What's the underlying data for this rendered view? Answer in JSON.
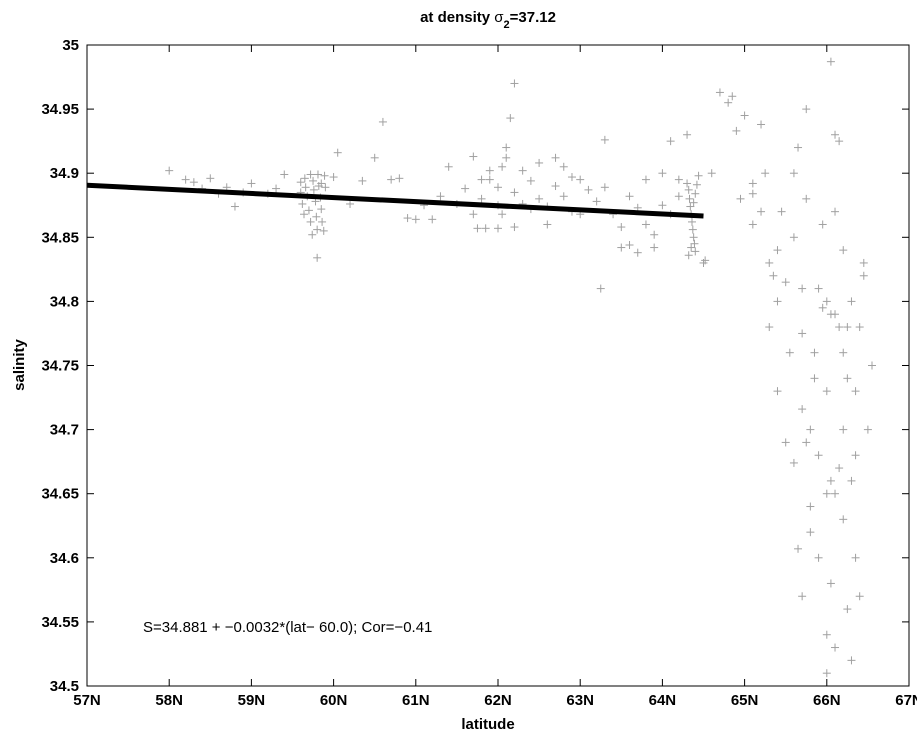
{
  "chart_data": {
    "type": "scatter",
    "title": {
      "prefix": "at density ",
      "symbol": "σ",
      "subscript": "2",
      "suffix": "=37.12"
    },
    "xlabel": "latitude",
    "ylabel": "salinity",
    "xlim": [
      57,
      67
    ],
    "ylim": [
      34.5,
      35
    ],
    "x_ticks": [
      57,
      58,
      59,
      60,
      61,
      62,
      63,
      64,
      65,
      66,
      67
    ],
    "x_tick_labels": [
      "57N",
      "58N",
      "59N",
      "60N",
      "61N",
      "62N",
      "63N",
      "64N",
      "65N",
      "66N",
      "67N"
    ],
    "y_ticks": [
      34.5,
      34.55,
      34.6,
      34.65,
      34.7,
      34.75,
      34.8,
      34.85,
      34.9,
      34.95,
      35
    ],
    "y_tick_labels": [
      "34.5",
      "34.55",
      "34.6",
      "34.65",
      "34.7",
      "34.75",
      "34.8",
      "34.85",
      "34.9",
      "34.95",
      "35"
    ],
    "grid": false,
    "marker": "+",
    "marker_color": "#a0a0a0",
    "fit_line": {
      "x": [
        57,
        64.5
      ],
      "y": [
        34.8906,
        34.8666
      ],
      "color": "#000000"
    },
    "annotation": "S=34.881 + −0.0032*(lat− 60.0); Cor=−0.41",
    "series": [
      {
        "points": [
          [
            58.0,
            34.902
          ],
          [
            58.2,
            34.895
          ],
          [
            58.3,
            34.893
          ],
          [
            58.4,
            34.888
          ],
          [
            58.5,
            34.896
          ],
          [
            58.6,
            34.884
          ],
          [
            58.7,
            34.889
          ],
          [
            58.8,
            34.874
          ],
          [
            58.9,
            34.885
          ],
          [
            59.0,
            34.892
          ],
          [
            59.2,
            34.884
          ],
          [
            59.3,
            34.888
          ],
          [
            59.4,
            34.899
          ],
          [
            59.6,
            34.893
          ],
          [
            59.6,
            34.885
          ],
          [
            59.62,
            34.876
          ],
          [
            59.64,
            34.868
          ],
          [
            59.65,
            34.896
          ],
          [
            59.66,
            34.889
          ],
          [
            59.68,
            34.882
          ],
          [
            59.7,
            34.871
          ],
          [
            59.72,
            34.862
          ],
          [
            59.74,
            34.852
          ],
          [
            59.75,
            34.894
          ],
          [
            59.76,
            34.887
          ],
          [
            59.78,
            34.878
          ],
          [
            59.79,
            34.866
          ],
          [
            59.8,
            34.856
          ],
          [
            59.8,
            34.834
          ],
          [
            59.81,
            34.899
          ],
          [
            59.82,
            34.89
          ],
          [
            59.84,
            34.881
          ],
          [
            59.85,
            34.872
          ],
          [
            59.86,
            34.862
          ],
          [
            59.88,
            34.855
          ],
          [
            59.89,
            34.898
          ],
          [
            59.9,
            34.889
          ],
          [
            59.72,
            34.899
          ],
          [
            59.85,
            34.892
          ],
          [
            60.0,
            34.897
          ],
          [
            60.05,
            34.916
          ],
          [
            60.2,
            34.876
          ],
          [
            60.35,
            34.894
          ],
          [
            60.5,
            34.912
          ],
          [
            60.6,
            34.94
          ],
          [
            60.7,
            34.895
          ],
          [
            60.8,
            34.896
          ],
          [
            60.9,
            34.865
          ],
          [
            61.0,
            34.864
          ],
          [
            61.1,
            34.875
          ],
          [
            61.2,
            34.864
          ],
          [
            61.3,
            34.882
          ],
          [
            61.4,
            34.905
          ],
          [
            61.5,
            34.876
          ],
          [
            61.6,
            34.888
          ],
          [
            61.7,
            34.868
          ],
          [
            61.75,
            34.857
          ],
          [
            61.8,
            34.88
          ],
          [
            61.85,
            34.857
          ],
          [
            61.9,
            34.895
          ],
          [
            62.0,
            34.857
          ],
          [
            62.05,
            34.905
          ],
          [
            62.1,
            34.92
          ],
          [
            62.15,
            34.943
          ],
          [
            62.2,
            34.97
          ],
          [
            62.2,
            34.858
          ],
          [
            62.3,
            34.876
          ],
          [
            62.4,
            34.872
          ],
          [
            62.5,
            34.908
          ],
          [
            62.6,
            34.86
          ],
          [
            62.7,
            34.912
          ],
          [
            62.8,
            34.882
          ],
          [
            62.9,
            34.87
          ],
          [
            63.0,
            34.868
          ],
          [
            63.0,
            34.895
          ],
          [
            61.7,
            34.913
          ],
          [
            61.8,
            34.895
          ],
          [
            61.9,
            34.902
          ],
          [
            62.0,
            34.889
          ],
          [
            62.0,
            34.875
          ],
          [
            62.05,
            34.868
          ],
          [
            62.1,
            34.912
          ],
          [
            62.2,
            34.885
          ],
          [
            62.3,
            34.902
          ],
          [
            62.4,
            34.894
          ],
          [
            62.5,
            34.88
          ],
          [
            62.6,
            34.874
          ],
          [
            62.7,
            34.89
          ],
          [
            62.8,
            34.905
          ],
          [
            62.9,
            34.897
          ],
          [
            63.1,
            34.887
          ],
          [
            63.2,
            34.878
          ],
          [
            63.3,
            34.889
          ],
          [
            63.4,
            34.868
          ],
          [
            63.5,
            34.858
          ],
          [
            63.6,
            34.882
          ],
          [
            63.7,
            34.873
          ],
          [
            63.8,
            34.86
          ],
          [
            63.9,
            34.852
          ],
          [
            64.0,
            34.875
          ],
          [
            64.1,
            34.868
          ],
          [
            64.2,
            34.895
          ],
          [
            63.25,
            34.81
          ],
          [
            63.3,
            34.926
          ],
          [
            63.5,
            34.842
          ],
          [
            63.6,
            34.844
          ],
          [
            63.7,
            34.838
          ],
          [
            63.8,
            34.895
          ],
          [
            63.9,
            34.842
          ],
          [
            64.0,
            34.9
          ],
          [
            64.1,
            34.925
          ],
          [
            64.2,
            34.882
          ],
          [
            64.3,
            34.93
          ],
          [
            64.3,
            34.892
          ],
          [
            64.32,
            34.887
          ],
          [
            64.33,
            34.88
          ],
          [
            64.34,
            34.874
          ],
          [
            64.35,
            34.868
          ],
          [
            64.36,
            34.862
          ],
          [
            64.37,
            34.856
          ],
          [
            64.38,
            34.85
          ],
          [
            64.39,
            34.845
          ],
          [
            64.4,
            34.839
          ],
          [
            64.32,
            34.836
          ],
          [
            64.35,
            34.842
          ],
          [
            64.38,
            34.877
          ],
          [
            64.4,
            34.884
          ],
          [
            64.42,
            34.891
          ],
          [
            64.44,
            34.898
          ],
          [
            64.5,
            34.83
          ],
          [
            64.52,
            34.832
          ],
          [
            64.6,
            34.9
          ],
          [
            64.7,
            34.963
          ],
          [
            64.8,
            34.955
          ],
          [
            64.85,
            34.96
          ],
          [
            64.9,
            34.933
          ],
          [
            64.95,
            34.88
          ],
          [
            65.0,
            34.945
          ],
          [
            65.1,
            34.892
          ],
          [
            65.1,
            34.884
          ],
          [
            65.1,
            34.86
          ],
          [
            65.2,
            34.938
          ],
          [
            65.2,
            34.87
          ],
          [
            65.25,
            34.9
          ],
          [
            65.3,
            34.83
          ],
          [
            65.3,
            34.78
          ],
          [
            65.35,
            34.82
          ],
          [
            65.4,
            34.73
          ],
          [
            65.4,
            34.84
          ],
          [
            65.45,
            34.87
          ],
          [
            65.5,
            34.815
          ],
          [
            65.55,
            34.76
          ],
          [
            65.6,
            34.85
          ],
          [
            65.6,
            34.9
          ],
          [
            65.65,
            34.92
          ],
          [
            65.7,
            34.775
          ],
          [
            65.7,
            34.81
          ],
          [
            65.75,
            34.95
          ],
          [
            65.75,
            34.88
          ],
          [
            65.8,
            34.62
          ],
          [
            65.85,
            34.74
          ],
          [
            65.9,
            34.6
          ],
          [
            65.95,
            34.86
          ],
          [
            66.0,
            34.54
          ],
          [
            66.0,
            34.65
          ],
          [
            66.05,
            34.58
          ],
          [
            66.1,
            34.53
          ],
          [
            66.15,
            34.67
          ],
          [
            66.2,
            34.63
          ],
          [
            66.25,
            34.56
          ],
          [
            66.3,
            34.52
          ],
          [
            66.35,
            34.73
          ],
          [
            66.4,
            34.78
          ],
          [
            66.45,
            34.82
          ],
          [
            66.5,
            34.7
          ],
          [
            66.55,
            34.75
          ],
          [
            65.6,
            34.674
          ],
          [
            65.65,
            34.607
          ],
          [
            65.7,
            34.716
          ],
          [
            65.75,
            34.69
          ],
          [
            65.8,
            34.7
          ],
          [
            65.85,
            34.76
          ],
          [
            65.9,
            34.81
          ],
          [
            65.95,
            34.795
          ],
          [
            66.0,
            34.8
          ],
          [
            66.05,
            34.79
          ],
          [
            66.1,
            34.79
          ],
          [
            66.15,
            34.78
          ],
          [
            66.2,
            34.76
          ],
          [
            66.25,
            34.74
          ],
          [
            66.3,
            34.8
          ],
          [
            66.35,
            34.68
          ],
          [
            66.05,
            34.66
          ],
          [
            66.1,
            34.65
          ],
          [
            66.2,
            34.7
          ],
          [
            66.0,
            34.73
          ],
          [
            66.05,
            34.987
          ],
          [
            66.1,
            34.93
          ],
          [
            66.15,
            34.925
          ],
          [
            66.1,
            34.87
          ],
          [
            66.2,
            34.84
          ],
          [
            66.25,
            34.78
          ],
          [
            66.3,
            34.66
          ],
          [
            66.35,
            34.6
          ],
          [
            66.4,
            34.57
          ],
          [
            66.45,
            34.83
          ],
          [
            66.0,
            34.51
          ],
          [
            65.9,
            34.68
          ],
          [
            65.8,
            34.64
          ],
          [
            65.7,
            34.57
          ],
          [
            65.5,
            34.69
          ],
          [
            65.4,
            34.8
          ]
        ]
      }
    ]
  }
}
